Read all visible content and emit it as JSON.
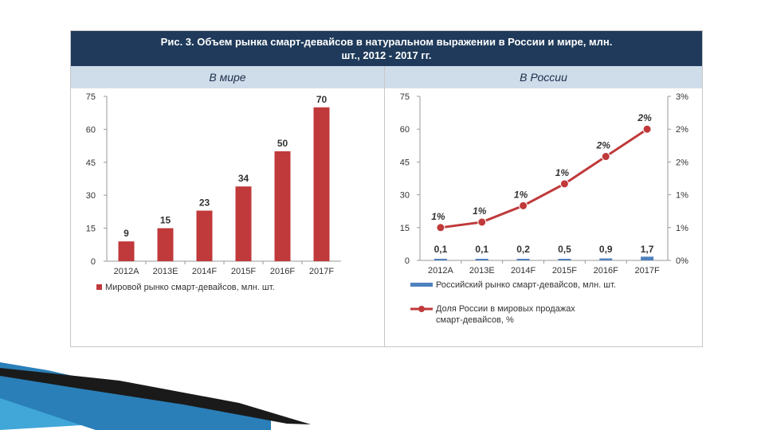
{
  "header": {
    "line1": "Рис. 3. Объем рынка смарт-девайсов в натуральном выражении в России и мире, млн.",
    "line2": "шт., 2012 - 2017 гг."
  },
  "panels": {
    "left_title": "В мире",
    "right_title": "В России"
  },
  "chart_data": [
    {
      "type": "bar",
      "categories": [
        "2012A",
        "2013E",
        "2014F",
        "2015F",
        "2016F",
        "2017F"
      ],
      "series": [
        {
          "name": "Мировой рынко смарт-девайсов, млн. шт.",
          "values": [
            9,
            15,
            23,
            34,
            50,
            70
          ],
          "color": "#c0393b"
        }
      ],
      "data_labels": [
        "9",
        "15",
        "23",
        "34",
        "50",
        "70"
      ],
      "ylim": [
        0,
        75
      ],
      "yticks": [
        "0",
        "15",
        "30",
        "45",
        "60",
        "75"
      ],
      "grid": false,
      "legend": "bottom"
    },
    {
      "type": "bar",
      "categories": [
        "2012A",
        "2013E",
        "2014F",
        "2015F",
        "2016F",
        "2017F"
      ],
      "ylim": [
        0,
        75
      ],
      "yticks": [
        "0",
        "15",
        "30",
        "45",
        "60",
        "75"
      ],
      "y2lim": [
        0,
        3
      ],
      "y2ticks": [
        "0%",
        "1%",
        "1%",
        "2%",
        "2%",
        "3%"
      ],
      "grid": false,
      "legend": "bottom",
      "series": [
        {
          "name": "Российский рынко смарт-девайсов, млн. шт.",
          "type": "bar",
          "axis": "left",
          "values": [
            0.1,
            0.1,
            0.2,
            0.5,
            0.9,
            1.7
          ],
          "labels": [
            "0,1",
            "0,1",
            "0,2",
            "0,5",
            "0,9",
            "1,7"
          ],
          "color": "#4f81bd"
        },
        {
          "name": "Доля России в мировых продажах смарт-девайсов, %",
          "type": "line",
          "axis": "right",
          "values": [
            0.6,
            0.7,
            1.0,
            1.4,
            1.9,
            2.4
          ],
          "labels": [
            "1%",
            "1%",
            "1%",
            "1%",
            "2%",
            "2%"
          ],
          "color": "#c0393b"
        }
      ]
    }
  ],
  "colors": {
    "header_bg": "#1f3a5a",
    "subheader_bg": "#cfdcea",
    "bar_world": "#c0393b",
    "bar_russia": "#4f81bd",
    "line_russia": "#c0393b"
  }
}
